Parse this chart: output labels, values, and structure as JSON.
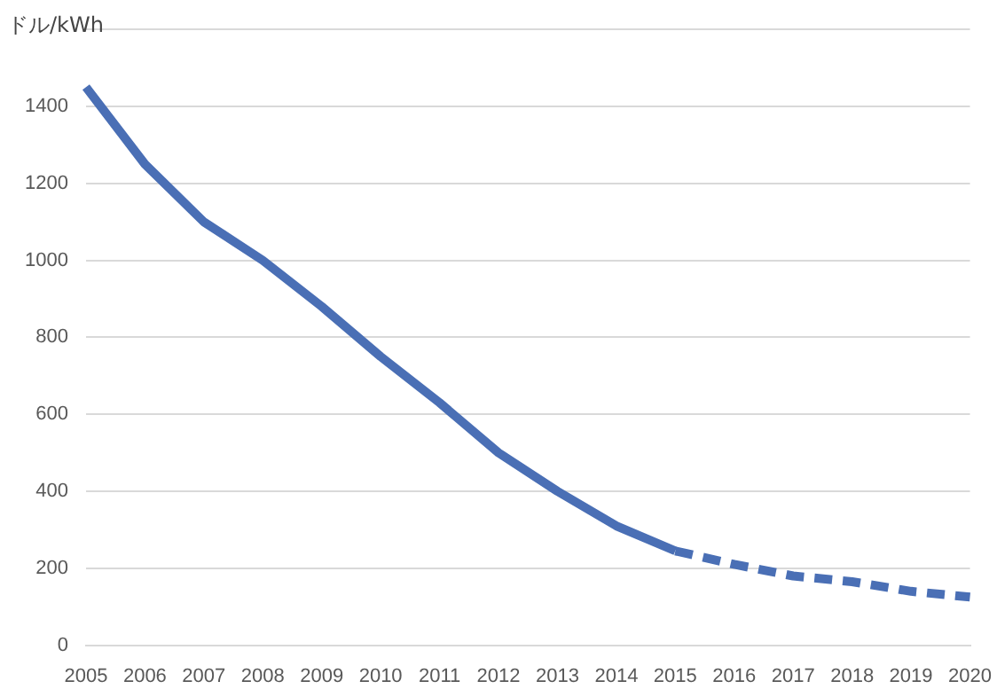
{
  "chart_data": {
    "type": "line",
    "ylabel": "ドル/kWh",
    "categories": [
      "2005",
      "2006",
      "2007",
      "2008",
      "2009",
      "2010",
      "2011",
      "2012",
      "2013",
      "2014",
      "2015",
      "2016",
      "2017",
      "2018",
      "2019",
      "2020"
    ],
    "series": [
      {
        "color": "#4a6fb5",
        "line_style": "solid",
        "values": [
          1450,
          1250,
          1100,
          1000,
          880,
          750,
          630,
          500,
          400,
          310,
          245,
          null,
          null,
          null,
          null,
          null
        ]
      },
      {
        "color": "#4a6fb5",
        "line_style": "dashed",
        "values": [
          null,
          null,
          null,
          null,
          null,
          null,
          null,
          null,
          null,
          null,
          245,
          210,
          180,
          165,
          140,
          125
        ]
      }
    ],
    "ylim": [
      0,
      1600
    ],
    "yticks": [
      0,
      200,
      400,
      600,
      800,
      1000,
      1200,
      1400,
      {
        "value": 1600,
        "label": null
      }
    ],
    "grid": "y",
    "legend": false,
    "marker": "none"
  }
}
